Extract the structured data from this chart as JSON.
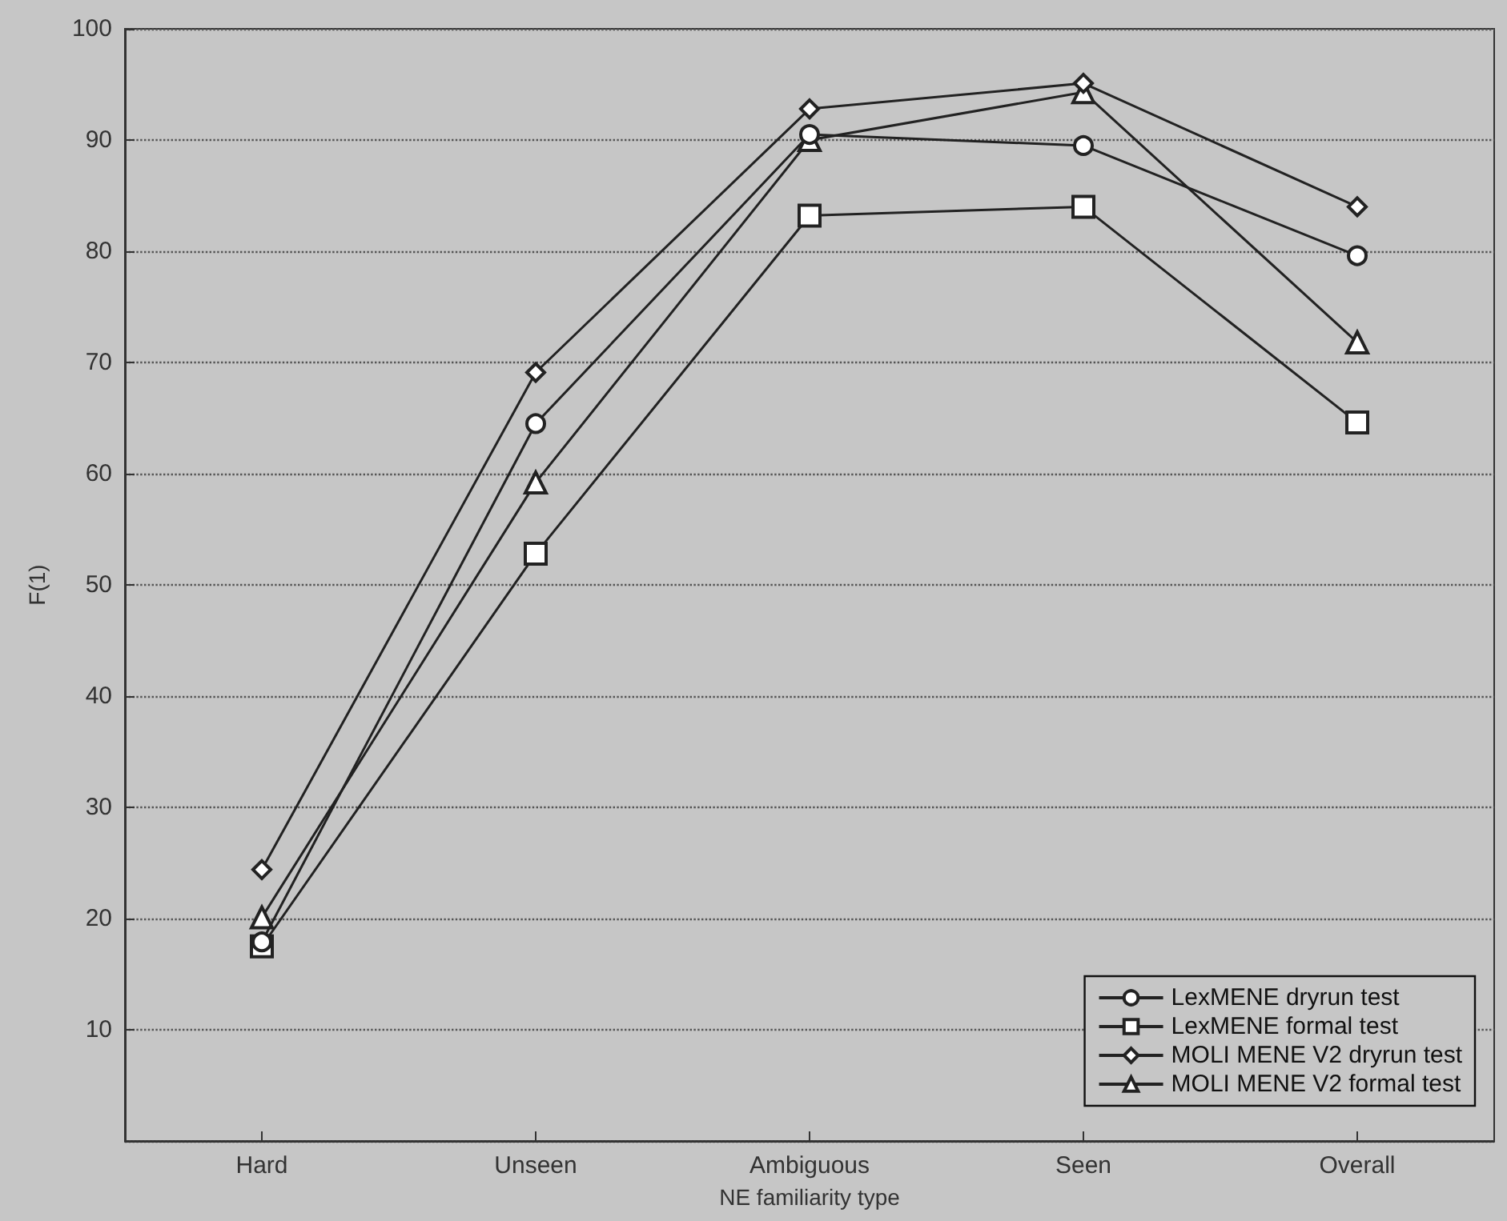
{
  "chart_data": {
    "type": "line",
    "xlabel": "NE familiarity type",
    "ylabel": "F(1)",
    "categories": [
      "Hard",
      "Unseen",
      "Ambiguous",
      "Seen",
      "Overall"
    ],
    "series": [
      {
        "name": "LexMENE dryrun test",
        "color": "#222222",
        "marker": "circle",
        "values": [
          17.9,
          64.5,
          90.5,
          89.5,
          79.6
        ]
      },
      {
        "name": "LexMENE formal test",
        "color": "#222222",
        "marker": "square",
        "values": [
          17.5,
          52.8,
          83.2,
          84.0,
          64.6
        ]
      },
      {
        "name": "MOLI MENE V2 dryrun test",
        "color": "#222222",
        "marker": "diamond",
        "values": [
          24.4,
          69.1,
          92.8,
          95.1,
          84.0
        ]
      },
      {
        "name": "MOLI MENE V2 formal test",
        "color": "#222222",
        "marker": "triangle",
        "values": [
          20.1,
          59.2,
          90.0,
          94.3,
          71.8
        ]
      }
    ],
    "ylim": [
      0,
      100
    ],
    "yticks": [
      {
        "value": 0,
        "label": null
      },
      10,
      20,
      30,
      40,
      50,
      60,
      70,
      80,
      90,
      100
    ],
    "grid": "y",
    "legend": "bottom right",
    "line_style": "solid"
  }
}
